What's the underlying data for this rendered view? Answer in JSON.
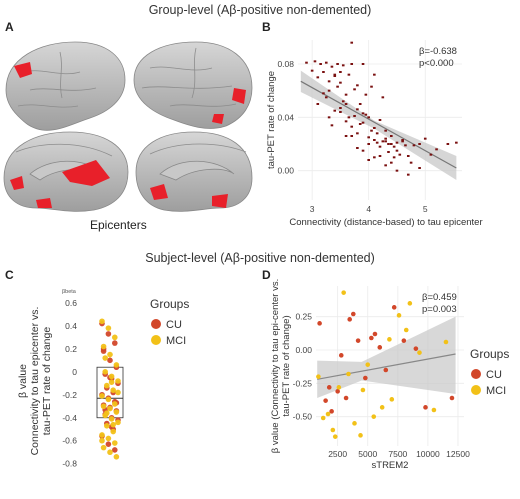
{
  "header_top": "Group-level (Aβ-positive non-demented)",
  "header_bottom": "Subject-level (Aβ-positive non-demented)",
  "panelA": {
    "letter": "A",
    "caption": "Epicenters"
  },
  "panelB": {
    "letter": "B"
  },
  "panelC": {
    "letter": "C"
  },
  "panelD": {
    "letter": "D"
  },
  "colors": {
    "cu": "#d2472a",
    "mci": "#f2c118",
    "tau_points": "#7a1010",
    "band": "#c8c8c8",
    "brain": "#b9b9b9",
    "epicenter": "#e8202a"
  },
  "chart_data": [
    {
      "panel": "B",
      "type": "scatter",
      "xlabel": "Connectivity (distance-based) to tau epicenter",
      "ylabel": "tau-PET rate of change",
      "xticks": [
        3,
        4,
        5
      ],
      "yticks": [
        "0.00",
        "0.04",
        "0.08"
      ],
      "xlim": [
        2.75,
        5.65
      ],
      "ylim": [
        -0.022,
        0.098
      ],
      "annotation": [
        "β=-0.638",
        "p<0.000"
      ],
      "fit": {
        "x": [
          2.8,
          5.55
        ],
        "y": [
          0.067,
          0.002
        ]
      },
      "x": [
        2.9,
        3.0,
        3.05,
        3.1,
        3.15,
        3.2,
        3.25,
        3.3,
        3.35,
        3.4,
        3.45,
        3.5,
        3.55,
        3.6,
        3.65,
        3.7,
        3.75,
        3.8,
        3.85,
        3.9,
        3.95,
        4.0,
        4.05,
        4.1,
        4.15,
        4.2,
        4.25,
        4.3,
        4.35,
        4.4,
        4.45,
        4.5,
        4.6,
        4.7,
        4.8,
        4.9,
        5.0,
        5.1,
        5.2,
        5.4,
        5.55,
        3.2,
        3.3,
        3.4,
        3.5,
        3.6,
        3.7,
        3.8,
        3.9,
        4.0,
        4.1,
        4.2,
        4.3,
        4.4,
        4.5,
        4.6,
        3.1,
        3.25,
        3.45,
        3.55,
        3.65,
        3.75,
        3.85,
        3.95,
        4.05,
        4.15,
        4.25,
        4.35,
        4.45,
        4.55,
        4.65,
        4.75,
        3.35,
        3.5,
        3.7,
        3.9,
        4.1,
        4.3,
        4.5,
        4.7,
        4.9,
        3.6,
        3.8,
        4.0,
        4.2,
        4.4,
        3.4,
        3.6,
        3.8,
        4.0,
        3.7,
        3.9,
        4.1,
        4.3,
        3.3,
        3.5
      ],
      "y": [
        0.081,
        0.075,
        0.082,
        0.07,
        0.08,
        0.074,
        0.081,
        0.06,
        0.078,
        0.071,
        0.08,
        0.066,
        0.079,
        0.057,
        0.072,
        0.08,
        0.041,
        0.064,
        0.05,
        0.08,
        0.057,
        0.04,
        0.063,
        0.072,
        0.021,
        0.038,
        0.055,
        0.03,
        0.02,
        0.026,
        0.01,
        0.021,
        0.023,
        0.011,
        0.019,
        0.02,
        0.024,
        0.012,
        0.016,
        0.02,
        0.021,
        0.058,
        0.067,
        0.072,
        0.044,
        0.05,
        0.033,
        0.028,
        0.036,
        0.025,
        0.023,
        0.018,
        0.024,
        0.02,
        0.015,
        0.022,
        0.05,
        0.055,
        0.063,
        0.052,
        0.04,
        0.061,
        0.035,
        0.042,
        0.03,
        0.028,
        0.022,
        0.014,
        0.018,
        0.012,
        0.019,
        0.006,
        0.034,
        0.047,
        0.026,
        0.015,
        0.01,
        0.004,
        0.0,
        -0.003,
        0.002,
        0.026,
        0.017,
        0.008,
        0.011,
        0.006,
        0.045,
        0.037,
        0.046,
        0.02,
        0.096,
        0.043,
        0.032,
        0.022,
        0.04,
        0.074
      ]
    },
    {
      "panel": "C",
      "type": "scatter",
      "xlabel": "",
      "ylabel": "β value\nConnectivity to tau epicenter vs.\ntau-PET rate of change",
      "ytick_title": "βbeta",
      "yticks": [
        0.6,
        0.4,
        0.2,
        0,
        -0.2,
        -0.4,
        -0.6,
        -0.8
      ],
      "ylim": [
        -0.82,
        0.66
      ],
      "legend_title": "Groups",
      "legend_position": "right",
      "series": [
        {
          "name": "CU",
          "values": [
            0.42,
            0.33,
            0.25,
            0.18,
            0.1,
            0.04,
            -0.02,
            -0.06,
            -0.1,
            -0.14,
            -0.18,
            -0.2,
            -0.23,
            -0.26,
            -0.29,
            -0.31,
            -0.34,
            -0.37,
            -0.4,
            -0.42,
            -0.45,
            -0.5,
            -0.56,
            -0.63,
            -0.68,
            0.2,
            -0.05,
            -0.27,
            -0.33,
            -0.48
          ]
        },
        {
          "name": "MCI",
          "values": [
            0.44,
            0.38,
            0.3,
            0.22,
            0.15,
            0.06,
            0.0,
            -0.04,
            -0.08,
            -0.12,
            -0.16,
            -0.21,
            -0.24,
            -0.28,
            -0.3,
            -0.32,
            -0.35,
            -0.38,
            -0.41,
            -0.44,
            -0.47,
            -0.52,
            -0.55,
            -0.58,
            -0.62,
            -0.66,
            -0.7,
            -0.74,
            0.12,
            -0.09,
            -0.18,
            -0.36,
            -0.46,
            -0.6
          ]
        }
      ],
      "box": {
        "q1": -0.4,
        "median": -0.23,
        "q3": 0.04
      }
    },
    {
      "panel": "D",
      "type": "scatter",
      "xlabel": "sTREM2",
      "ylabel": "β value (Connectivity to tau epi-center vs.\ntau-PET rate of change)",
      "xticks": [
        2500,
        5000,
        7500,
        10000,
        12500
      ],
      "yticks": [
        "0.25",
        "0.00",
        "-0.25",
        "-0.50"
      ],
      "xlim": [
        700,
        13000
      ],
      "ylim": [
        -0.72,
        0.48
      ],
      "annotation": [
        "β=0.459",
        "p=0.003"
      ],
      "legend_title": "Groups",
      "legend_position": "right",
      "fit": {
        "x": [
          800,
          12300
        ],
        "y": [
          -0.22,
          -0.03
        ]
      },
      "series": [
        {
          "name": "CU",
          "x": [
            1000,
            1500,
            2000,
            2500,
            3200,
            3800,
            4200,
            4800,
            5300,
            6000,
            6500,
            7200,
            8000,
            9000,
            9800,
            12000,
            1800,
            2800,
            3500,
            5600
          ],
          "y": [
            0.2,
            -0.38,
            -0.46,
            -0.31,
            -0.36,
            0.27,
            0.07,
            -0.21,
            0.09,
            0.02,
            -0.15,
            0.32,
            0.07,
            0.01,
            -0.43,
            -0.36,
            -0.28,
            -0.04,
            0.23,
            0.12
          ]
        },
        {
          "name": "MCI",
          "x": [
            900,
            1300,
            1700,
            2100,
            2600,
            3000,
            3400,
            3900,
            4400,
            5000,
            5500,
            6200,
            7000,
            7600,
            8500,
            9300,
            10500,
            11500,
            2300,
            4600,
            6800,
            8200
          ],
          "y": [
            -0.2,
            -0.51,
            -0.48,
            -0.6,
            -0.28,
            0.43,
            -0.18,
            -0.55,
            -0.64,
            -0.11,
            -0.5,
            -0.43,
            -0.37,
            0.26,
            0.35,
            -0.02,
            -0.45,
            0.06,
            -0.65,
            -0.3,
            0.08,
            0.15
          ]
        }
      ]
    }
  ]
}
